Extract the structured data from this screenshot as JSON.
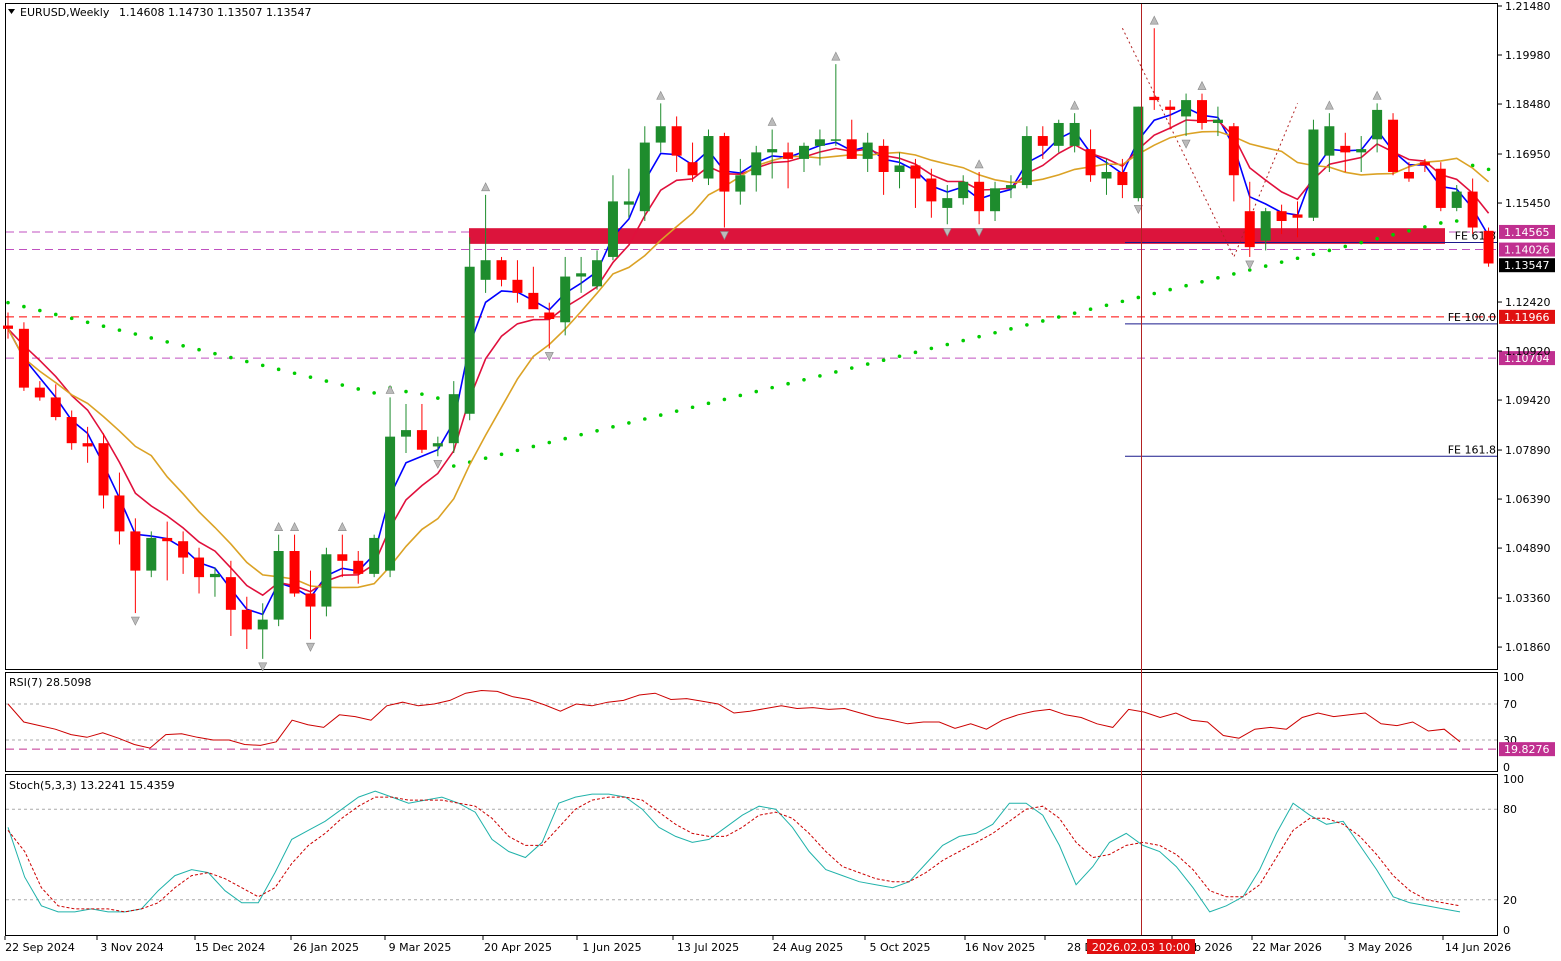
{
  "header": {
    "symbol_label": "EURUSD,Weekly",
    "ohlc": "1.14608 1.14730 1.13507 1.13547",
    "dropdown_icon": "triangle-down-icon"
  },
  "colors": {
    "bull": "#1e8c2d",
    "bear": "#ff0000",
    "ma_fast": "#0000ff",
    "ma_mid": "#e0103c",
    "ma_slow": "#dba225",
    "sar": "#00cc00",
    "zone": "#dc143c",
    "rsi": "#cc0000",
    "stoch_main": "#20b2aa",
    "stoch_signal": "#cc0000",
    "crosshair": "#b22222"
  },
  "chart_data": [
    {
      "type": "candlestick",
      "title": "EURUSD,Weekly",
      "ylim": [
        1.0125,
        1.2148
      ],
      "y_ticks": [
        "1.21480",
        "1.19980",
        "1.18480",
        "1.16950",
        "1.15450",
        "1.12420",
        "1.10920",
        "1.09420",
        "1.07890",
        "1.06390",
        "1.04890",
        "1.03360",
        "1.01860"
      ],
      "x_ticks": [
        "22 Sep 2024",
        "3 Nov 2024",
        "15 Dec 2024",
        "26 Jan 2025",
        "9 Mar 2025",
        "20 Apr 2025",
        "1 Jun 2025",
        "13 Jul 2025",
        "24 Aug 2025",
        "5 Oct 2025",
        "16 Nov 2025",
        "28 D",
        "Feb 2026",
        "22 Mar 2026",
        "3 May 2026",
        "14 Jun 2026"
      ],
      "crosshair_label": "2026.02.03 10:00",
      "candles": [
        [
          1.117,
          1.121,
          1.113,
          1.116
        ],
        [
          1.116,
          1.118,
          1.097,
          1.098
        ],
        [
          1.098,
          1.1,
          1.094,
          1.095
        ],
        [
          1.095,
          1.099,
          1.088,
          1.089
        ],
        [
          1.089,
          1.091,
          1.079,
          1.081
        ],
        [
          1.081,
          1.086,
          1.075,
          1.08
        ],
        [
          1.081,
          1.084,
          1.061,
          1.065
        ],
        [
          1.065,
          1.072,
          1.05,
          1.054
        ],
        [
          1.054,
          1.058,
          1.029,
          1.042
        ],
        [
          1.042,
          1.054,
          1.04,
          1.052
        ],
        [
          1.052,
          1.057,
          1.039,
          1.051
        ],
        [
          1.051,
          1.054,
          1.041,
          1.046
        ],
        [
          1.046,
          1.049,
          1.035,
          1.04
        ],
        [
          1.04,
          1.043,
          1.034,
          1.041
        ],
        [
          1.04,
          1.045,
          1.022,
          1.03
        ],
        [
          1.03,
          1.034,
          1.018,
          1.024
        ],
        [
          1.024,
          1.032,
          1.015,
          1.027
        ],
        [
          1.027,
          1.053,
          1.025,
          1.048
        ],
        [
          1.048,
          1.053,
          1.034,
          1.035
        ],
        [
          1.035,
          1.042,
          1.021,
          1.031
        ],
        [
          1.031,
          1.049,
          1.028,
          1.047
        ],
        [
          1.047,
          1.053,
          1.04,
          1.045
        ],
        [
          1.045,
          1.048,
          1.038,
          1.041
        ],
        [
          1.041,
          1.053,
          1.04,
          1.052
        ],
        [
          1.042,
          1.095,
          1.04,
          1.083
        ],
        [
          1.083,
          1.093,
          1.078,
          1.085
        ],
        [
          1.085,
          1.093,
          1.078,
          1.079
        ],
        [
          1.08,
          1.083,
          1.077,
          1.081
        ],
        [
          1.081,
          1.1,
          1.078,
          1.096
        ],
        [
          1.09,
          1.144,
          1.088,
          1.135
        ],
        [
          1.131,
          1.157,
          1.127,
          1.137
        ],
        [
          1.137,
          1.138,
          1.129,
          1.131
        ],
        [
          1.131,
          1.137,
          1.124,
          1.127
        ],
        [
          1.127,
          1.135,
          1.123,
          1.122
        ],
        [
          1.121,
          1.124,
          1.11,
          1.119
        ],
        [
          1.118,
          1.138,
          1.114,
          1.132
        ],
        [
          1.132,
          1.138,
          1.127,
          1.133
        ],
        [
          1.129,
          1.14,
          1.128,
          1.137
        ],
        [
          1.138,
          1.163,
          1.137,
          1.155
        ],
        [
          1.154,
          1.165,
          1.15,
          1.155
        ],
        [
          1.152,
          1.178,
          1.149,
          1.173
        ],
        [
          1.173,
          1.185,
          1.17,
          1.178
        ],
        [
          1.178,
          1.181,
          1.164,
          1.169
        ],
        [
          1.167,
          1.173,
          1.161,
          1.163
        ],
        [
          1.162,
          1.177,
          1.16,
          1.175
        ],
        [
          1.175,
          1.176,
          1.147,
          1.158
        ],
        [
          1.158,
          1.168,
          1.154,
          1.163
        ],
        [
          1.163,
          1.172,
          1.158,
          1.17
        ],
        [
          1.17,
          1.177,
          1.162,
          1.171
        ],
        [
          1.17,
          1.173,
          1.159,
          1.168
        ],
        [
          1.168,
          1.173,
          1.164,
          1.172
        ],
        [
          1.172,
          1.177,
          1.166,
          1.174
        ],
        [
          1.174,
          1.197,
          1.172,
          1.174
        ],
        [
          1.174,
          1.18,
          1.168,
          1.168
        ],
        [
          1.168,
          1.176,
          1.164,
          1.173
        ],
        [
          1.172,
          1.174,
          1.157,
          1.164
        ],
        [
          1.164,
          1.17,
          1.159,
          1.166
        ],
        [
          1.166,
          1.168,
          1.153,
          1.162
        ],
        [
          1.162,
          1.165,
          1.15,
          1.155
        ],
        [
          1.153,
          1.16,
          1.148,
          1.156
        ],
        [
          1.156,
          1.163,
          1.154,
          1.161
        ],
        [
          1.161,
          1.164,
          1.148,
          1.152
        ],
        [
          1.152,
          1.161,
          1.149,
          1.159
        ],
        [
          1.159,
          1.163,
          1.156,
          1.16
        ],
        [
          1.16,
          1.178,
          1.159,
          1.175
        ],
        [
          1.175,
          1.178,
          1.168,
          1.172
        ],
        [
          1.172,
          1.18,
          1.17,
          1.179
        ],
        [
          1.172,
          1.182,
          1.17,
          1.179
        ],
        [
          1.171,
          1.177,
          1.161,
          1.163
        ],
        [
          1.162,
          1.168,
          1.157,
          1.164
        ],
        [
          1.164,
          1.168,
          1.156,
          1.16
        ],
        [
          1.156,
          1.184,
          1.155,
          1.184
        ],
        [
          1.187,
          1.208,
          1.183,
          1.186
        ],
        [
          1.184,
          1.186,
          1.177,
          1.183
        ],
        [
          1.181,
          1.188,
          1.175,
          1.186
        ],
        [
          1.186,
          1.188,
          1.177,
          1.179
        ],
        [
          1.179,
          1.184,
          1.175,
          1.18
        ],
        [
          1.178,
          1.179,
          1.155,
          1.163
        ],
        [
          1.152,
          1.161,
          1.138,
          1.141
        ],
        [
          1.143,
          1.153,
          1.14,
          1.152
        ],
        [
          1.152,
          1.154,
          1.145,
          1.149
        ],
        [
          1.151,
          1.155,
          1.144,
          1.15
        ],
        [
          1.15,
          1.18,
          1.149,
          1.177
        ],
        [
          1.169,
          1.182,
          1.164,
          1.178
        ],
        [
          1.172,
          1.176,
          1.164,
          1.17
        ],
        [
          1.17,
          1.175,
          1.164,
          1.171
        ],
        [
          1.174,
          1.185,
          1.17,
          1.183
        ],
        [
          1.18,
          1.182,
          1.163,
          1.164
        ],
        [
          1.164,
          1.167,
          1.161,
          1.162
        ],
        [
          1.167,
          1.168,
          1.164,
          1.166
        ],
        [
          1.165,
          1.167,
          1.152,
          1.153
        ],
        [
          1.153,
          1.16,
          1.152,
          1.158
        ],
        [
          1.158,
          1.162,
          1.145,
          1.147
        ],
        [
          1.146,
          1.147,
          1.135,
          1.136
        ]
      ],
      "horizontal_levels": [
        {
          "label": "1.14565",
          "style": "dash",
          "color": "#c050c0"
        },
        {
          "label": "1.14026",
          "style": "dash",
          "color": "#c050c0"
        },
        {
          "label": "1.11966",
          "style": "dash",
          "color": "#ff0000"
        },
        {
          "label": "1.10704",
          "style": "dash",
          "color": "#c050c0"
        }
      ],
      "price_tag": "1.13547",
      "fibo_levels": [
        {
          "label": "FE 61.8",
          "value": 1.1424
        },
        {
          "label": "FE 100.0",
          "value": 1.1175
        },
        {
          "label": "FE 161.8",
          "value": 1.077
        }
      ]
    },
    {
      "type": "line",
      "title": "RSI(7) 28.5098",
      "ylim": [
        0,
        100
      ],
      "y_ticks": [
        "100",
        "70",
        "30",
        "0"
      ],
      "level_tag": "19.8276",
      "levels": [
        70,
        30,
        19.83
      ],
      "values": [
        70,
        50,
        46,
        42,
        36,
        33,
        38,
        32,
        25,
        21,
        36,
        37,
        33,
        30,
        30,
        25,
        24,
        28,
        52,
        47,
        44,
        58,
        56,
        52,
        68,
        72,
        68,
        70,
        74,
        82,
        85,
        84,
        78,
        75,
        69,
        62,
        70,
        68,
        72,
        74,
        80,
        82,
        75,
        76,
        73,
        70,
        60,
        62,
        65,
        68,
        65,
        66,
        64,
        65,
        60,
        55,
        52,
        48,
        50,
        50,
        43,
        48,
        42,
        52,
        58,
        62,
        64,
        58,
        55,
        48,
        44,
        64,
        61,
        55,
        60,
        52,
        50,
        35,
        32,
        42,
        44,
        42,
        55,
        60,
        56,
        58,
        60,
        48,
        46,
        50,
        40,
        42,
        28
      ]
    },
    {
      "type": "line",
      "title": "Stoch(5,3,3) 13.2241 15.4359",
      "ylim": [
        0,
        100
      ],
      "y_ticks": [
        "100",
        "80",
        "20",
        "0"
      ],
      "levels": [
        80,
        20
      ],
      "series": [
        {
          "values": [
            68,
            35,
            16,
            12,
            12,
            14,
            12,
            12,
            14,
            26,
            36,
            40,
            38,
            26,
            18,
            18,
            38,
            60,
            66,
            72,
            80,
            88,
            92,
            88,
            84,
            86,
            88,
            84,
            78,
            60,
            52,
            48,
            58,
            84,
            88,
            90,
            90,
            88,
            80,
            68,
            62,
            58,
            60,
            68,
            76,
            82,
            80,
            68,
            52,
            40,
            36,
            32,
            30,
            28,
            32,
            44,
            56,
            62,
            64,
            70,
            84,
            84,
            76,
            56,
            30,
            42,
            58,
            64,
            56,
            52,
            42,
            28,
            12,
            16,
            22,
            40,
            64,
            84,
            76,
            70,
            72,
            56,
            40,
            22,
            18,
            16,
            14,
            12
          ]
        },
        {
          "values": [
            66,
            52,
            28,
            16,
            14,
            14,
            14,
            12,
            14,
            18,
            28,
            36,
            38,
            34,
            28,
            22,
            28,
            44,
            56,
            64,
            74,
            82,
            88,
            88,
            86,
            86,
            86,
            84,
            82,
            74,
            62,
            56,
            56,
            68,
            80,
            86,
            88,
            88,
            86,
            78,
            70,
            64,
            62,
            62,
            68,
            76,
            78,
            74,
            64,
            52,
            42,
            38,
            34,
            32,
            32,
            38,
            46,
            52,
            58,
            64,
            72,
            80,
            82,
            74,
            58,
            48,
            50,
            56,
            58,
            56,
            50,
            40,
            26,
            22,
            22,
            30,
            48,
            66,
            74,
            74,
            70,
            62,
            50,
            36,
            26,
            20,
            18,
            16
          ]
        }
      ]
    }
  ]
}
